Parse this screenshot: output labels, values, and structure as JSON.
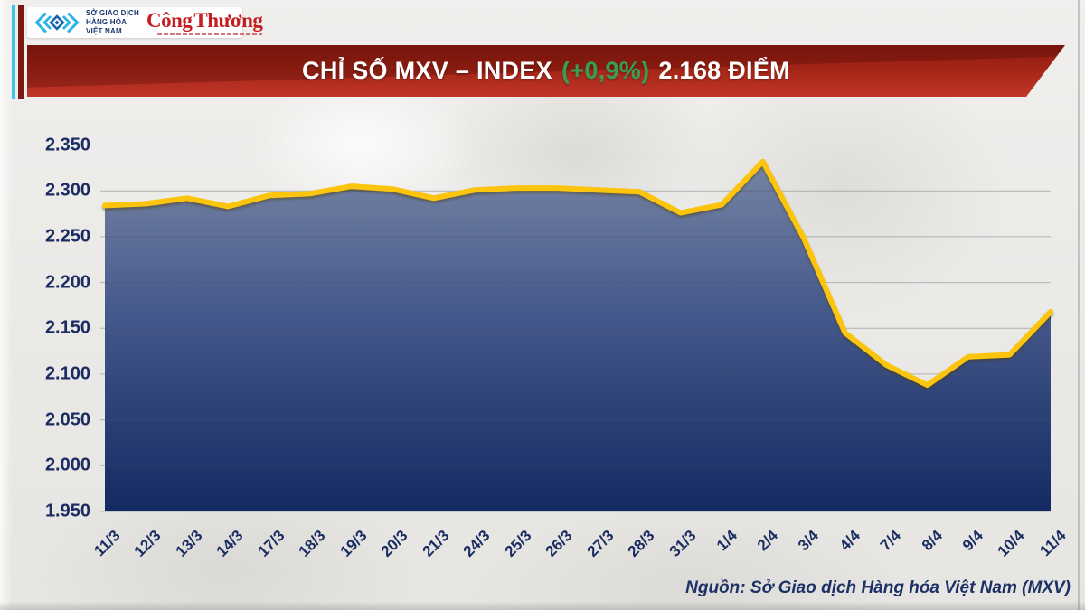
{
  "masthead": {
    "mxv_lines": [
      "SỞ GIAO DỊCH",
      "HÀNG HÓA",
      "VIỆT NAM"
    ],
    "congthuong_word1": "Công",
    "congthuong_word2": "Thương"
  },
  "banner": {
    "title_main": "CHỈ SỐ MXV – INDEX",
    "title_change": "(+0,9%)",
    "title_value": "2.168 ĐIỂM"
  },
  "footer": {
    "source": "Nguồn: Sở Giao dịch Hàng hóa Việt Nam (MXV)"
  },
  "chart_data": {
    "type": "area",
    "title": "CHỈ SỐ MXV – INDEX (+0,9%) 2.168 ĐIỂM",
    "x": [
      "11/3",
      "12/3",
      "13/3",
      "14/3",
      "17/3",
      "18/3",
      "19/3",
      "20/3",
      "21/3",
      "24/3",
      "25/3",
      "26/3",
      "27/3",
      "28/3",
      "31/3",
      "1/4",
      "2/4",
      "3/4",
      "4/4",
      "7/4",
      "8/4",
      "9/4",
      "10/4",
      "11/4"
    ],
    "values": [
      2284,
      2286,
      2292,
      2283,
      2295,
      2297,
      2305,
      2302,
      2292,
      2301,
      2303,
      2303,
      2301,
      2299,
      2276,
      2285,
      2332,
      2248,
      2145,
      2110,
      2088,
      2119,
      2121,
      2168
    ],
    "xlabel": "",
    "ylabel": "",
    "ylim": [
      1950,
      2350
    ],
    "y_tick_values": [
      2350,
      2300,
      2250,
      2200,
      2150,
      2100,
      2050,
      2000,
      1950
    ],
    "y_tick_labels": [
      "2.350",
      "2.300",
      "2.250",
      "2.200",
      "2.150",
      "2.100",
      "2.050",
      "2.000",
      "1.950"
    ],
    "grid": true,
    "legend_position": "none",
    "line_color": "#fcc40a",
    "area_gradient": [
      "#7b89a6",
      "#46598c",
      "#132a61"
    ],
    "grid_color": "rgba(75,85,105,0.38)"
  }
}
